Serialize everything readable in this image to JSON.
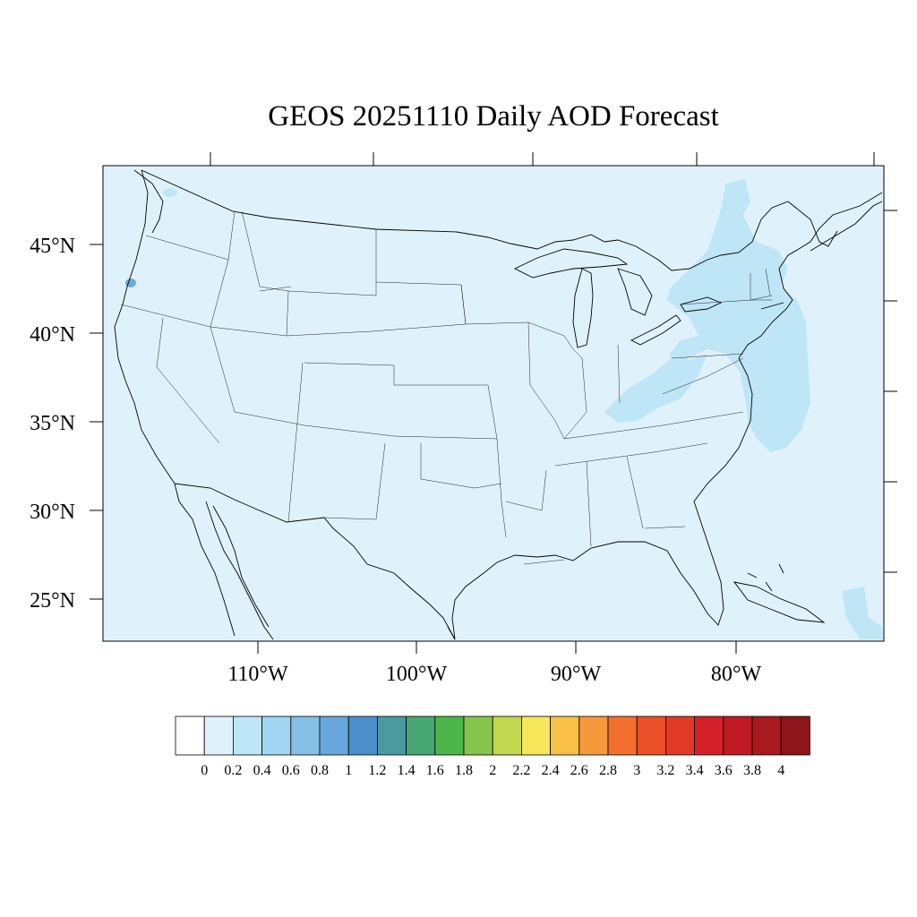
{
  "title": "GEOS 20251110 Daily AOD Forecast",
  "map": {
    "background_color": "#dff2fb",
    "lat_labels": [
      "45°N",
      "40°N",
      "35°N",
      "30°N",
      "25°N"
    ],
    "lon_labels": [
      "110°W",
      "100°W",
      "90°W",
      "80°W"
    ]
  },
  "colorbar": {
    "tick_labels": [
      "0",
      "0.2",
      "0.4",
      "0.6",
      "0.8",
      "1",
      "1.2",
      "1.4",
      "1.6",
      "1.8",
      "2",
      "2.2",
      "2.4",
      "2.6",
      "2.8",
      "3",
      "3.2",
      "3.4",
      "3.6",
      "3.8",
      "4"
    ],
    "colors": [
      "#ffffff",
      "#dff2fb",
      "#bfe6f7",
      "#a0d6f2",
      "#86bfe6",
      "#69a8dc",
      "#4a8ecb",
      "#4a9a9f",
      "#47a772",
      "#4cb64a",
      "#86c54c",
      "#c3d64f",
      "#f6e75a",
      "#f8c047",
      "#f6983c",
      "#f26f2d",
      "#ea5128",
      "#e13a26",
      "#d42028",
      "#c01b24",
      "#a91a1f",
      "#8e1519"
    ]
  }
}
